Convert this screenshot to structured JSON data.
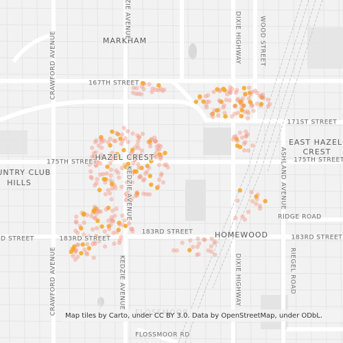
{
  "map": {
    "labels": {
      "markham": "MARKHAM",
      "street_167": "167TH STREET",
      "street_171": "171ST STREET",
      "east_hazel_crest_1": "EAST HAZEL",
      "east_hazel_crest_2": "CREST",
      "street_175_left": "175TH STREET",
      "street_175_right": "175TH STREET",
      "hazel_crest": "HAZEL CREST",
      "country_club_1": "OUNTRY CLUB",
      "country_club_2": "HILLS",
      "ridge_road": "RIDGE ROAD",
      "street_183_left": "RD STREET",
      "street_183_west": "183RD STREET",
      "street_183_center": "183RD STREET",
      "street_183_right": "183RD STREET",
      "homewood": "HOMEWOOD",
      "flossmoor": "FLOSSMOOR",
      "flossmoor_rd": "FLOSSMOOR RD",
      "crawford_top": "CRAWFORD AVENUE",
      "crawford_bottom": "CRAWFORD AVENUE",
      "kedzie_top": "KEDZIE AVENUE",
      "kedzie_mid": "KEDZIE AVENUE",
      "kedzie_bottom": "KEDZIE AVENUE",
      "dixie_top": "DIXIE HIGHWAY",
      "dixie_bottom": "DIXIE HIGHWAY",
      "wood_street": "WOOD STREET",
      "ashland": "ASHLAND AVENUE",
      "riegel": "RIEGEL ROAD"
    },
    "attribution": "Map tiles by Carto, under CC BY 3.0. Data by OpenStreetMap, under ODbL."
  }
}
